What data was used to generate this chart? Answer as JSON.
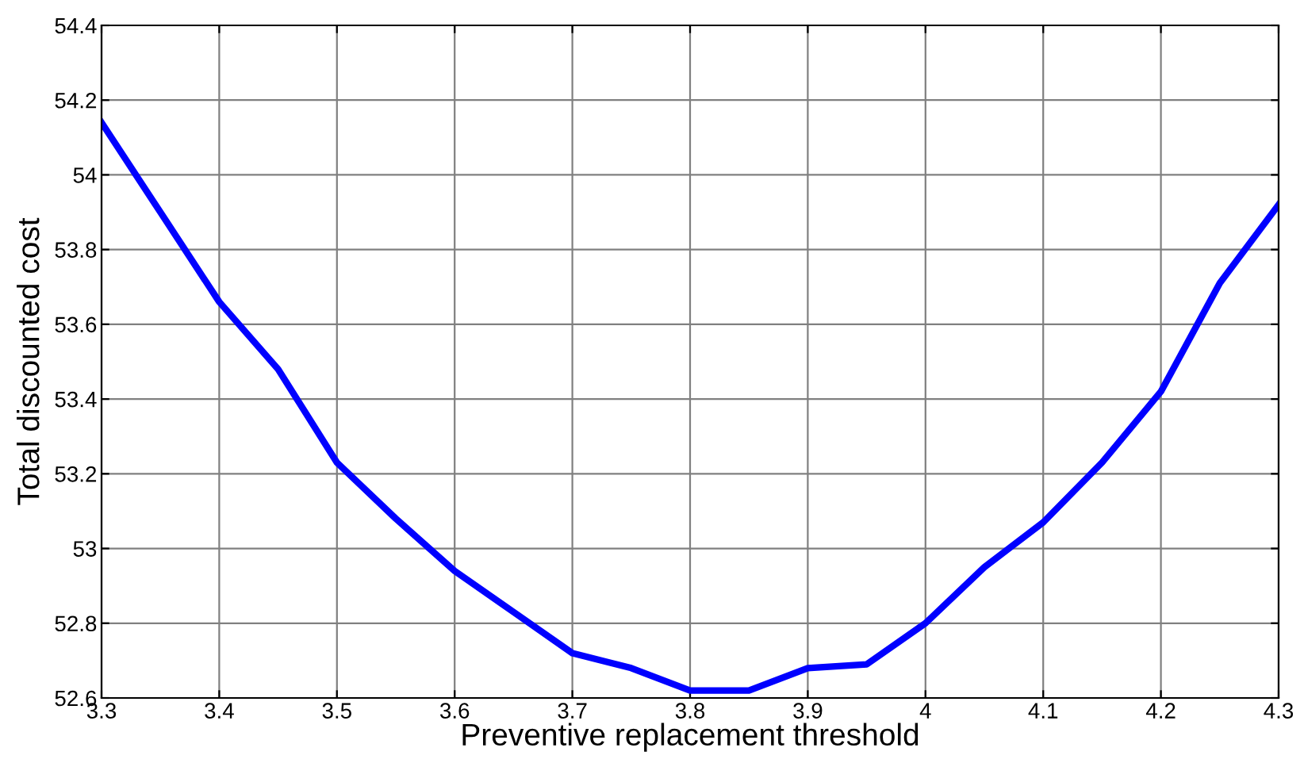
{
  "chart_data": {
    "type": "line",
    "xlabel": "Preventive replacement threshold",
    "ylabel": "Total discounted cost",
    "x": [
      3.3,
      3.35,
      3.4,
      3.45,
      3.5,
      3.55,
      3.6,
      3.65,
      3.7,
      3.75,
      3.8,
      3.85,
      3.9,
      3.95,
      4.0,
      4.05,
      4.1,
      4.15,
      4.2,
      4.25,
      4.3
    ],
    "series": [
      {
        "color": "#0000ff",
        "values": [
          54.14,
          53.9,
          53.66,
          53.48,
          53.23,
          53.08,
          52.94,
          52.83,
          52.72,
          52.68,
          52.62,
          52.62,
          52.68,
          52.69,
          52.8,
          52.95,
          53.07,
          53.23,
          53.42,
          53.71,
          53.92
        ]
      }
    ],
    "xlim": [
      3.3,
      4.3
    ],
    "xticks": [
      3.3,
      3.4,
      3.5,
      3.6,
      3.7,
      3.8,
      3.9,
      {
        "value": 4.0,
        "label": "4"
      },
      4.1,
      4.2,
      4.3
    ],
    "ylim": [
      52.6,
      54.4
    ],
    "yticks": [
      52.6,
      52.8,
      {
        "value": 53.0,
        "label": "53"
      },
      53.2,
      53.4,
      53.6,
      53.8,
      {
        "value": 54.0,
        "label": "54"
      },
      54.2,
      54.4
    ],
    "grid": true,
    "marker": "none",
    "line_style": "solid"
  }
}
